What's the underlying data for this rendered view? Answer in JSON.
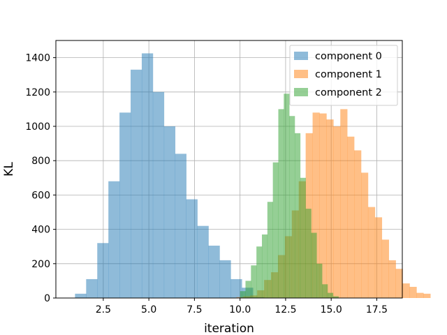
{
  "chart_data": {
    "type": "histogram",
    "xlabel": "iteration",
    "ylabel": "KL",
    "xlim": [
      -0.1,
      18.9
    ],
    "ylim": [
      0,
      1500
    ],
    "xticks": [
      2.5,
      5.0,
      7.5,
      10.0,
      12.5,
      15.0,
      17.5
    ],
    "xtick_labels": [
      "2.5",
      "5.0",
      "7.5",
      "10.0",
      "12.5",
      "15.0",
      "17.5"
    ],
    "yticks": [
      0,
      200,
      400,
      600,
      800,
      1000,
      1200,
      1400
    ],
    "ytick_labels": [
      "0",
      "200",
      "400",
      "600",
      "800",
      "1000",
      "1200",
      "1400"
    ],
    "grid": true,
    "legend_position": "top-right",
    "alpha": 0.5,
    "series": [
      {
        "name": "component 0",
        "color": "#1f77b4",
        "bin_start": 0.95,
        "bin_width": 0.61,
        "counts": [
          25,
          110,
          320,
          680,
          1080,
          1330,
          1425,
          1200,
          1000,
          840,
          575,
          420,
          305,
          220,
          110,
          60,
          5
        ]
      },
      {
        "name": "component 1",
        "color": "#ff7f0e",
        "bin_start": 9.8,
        "bin_width": 0.38,
        "counts": [
          5,
          10,
          15,
          45,
          105,
          150,
          250,
          360,
          510,
          680,
          960,
          1080,
          1075,
          1040,
          1000,
          1100,
          940,
          860,
          730,
          530,
          470,
          340,
          220,
          170,
          85,
          65,
          30,
          25
        ]
      },
      {
        "name": "component 2",
        "color": "#2ca02c",
        "bin_start": 10.0,
        "bin_width": 0.3,
        "counts": [
          40,
          100,
          190,
          300,
          370,
          560,
          790,
          1100,
          1190,
          1060,
          960,
          700,
          520,
          380,
          200,
          80,
          30,
          10
        ]
      }
    ]
  }
}
